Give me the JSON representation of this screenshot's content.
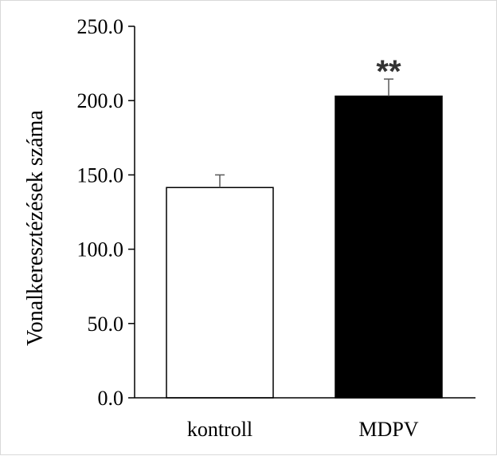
{
  "chart_data": {
    "type": "bar",
    "categories": [
      "kontroll",
      "MDPV"
    ],
    "values": [
      141.5,
      203.0
    ],
    "errors": [
      8.5,
      11.5
    ],
    "bar_fill": [
      "#ffffff",
      "#000000"
    ],
    "significance": [
      "",
      "**"
    ],
    "ylabel": "Vonalkeresztézések száma",
    "ylim": [
      0,
      250
    ],
    "yticks": [
      0,
      50,
      100,
      150,
      200,
      250
    ],
    "ytick_labels": [
      "0.0",
      "50.0",
      "100.0",
      "150.0",
      "200.0",
      "250.0"
    ],
    "grid": false,
    "legend": "none"
  }
}
